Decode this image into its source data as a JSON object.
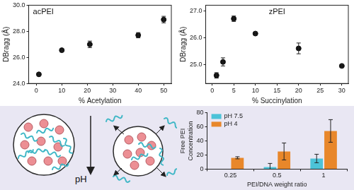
{
  "chart_data": [
    {
      "type": "scatter",
      "title": "acPEI",
      "x_label": "% Acetylation",
      "y_label": "DBragg (Å)",
      "x": [
        1,
        10,
        21,
        40,
        50
      ],
      "values": [
        24.7,
        26.55,
        27.0,
        27.7,
        28.9
      ],
      "errors": [
        0.08,
        0.08,
        0.25,
        0.2,
        0.25
      ],
      "color": "#111111",
      "marker": "circle",
      "xlim": [
        -3,
        53
      ],
      "xticks": [
        0,
        10,
        20,
        30,
        40,
        50
      ],
      "ylim": [
        24,
        30
      ],
      "yticks": [
        {
          "value": 24,
          "label": "24.0"
        },
        {
          "value": 26,
          "label": "26.0"
        },
        {
          "value": 28,
          "label": "28.0"
        },
        {
          "value": 30,
          "label": "30.0"
        }
      ],
      "grid": false
    },
    {
      "type": "scatter",
      "title": "zPEI",
      "x_label": "% Succinylation",
      "y_label": "DBragg (Å)",
      "x": [
        1,
        2.5,
        5,
        10,
        20,
        30
      ],
      "values": [
        24.6,
        25.1,
        26.7,
        26.15,
        25.6,
        24.95
      ],
      "errors": [
        0.1,
        0.15,
        0.1,
        0.05,
        0.2,
        0.05
      ],
      "color": "#111111",
      "marker": "circle",
      "xlim": [
        -1.5,
        31.5
      ],
      "xticks": [
        0,
        5,
        10,
        15,
        20,
        25,
        30
      ],
      "ylim": [
        24.3,
        27.2
      ],
      "yticks": [
        {
          "value": 25,
          "label": "25.0"
        },
        {
          "value": 26,
          "label": "26.0"
        },
        {
          "value": 27,
          "label": "27.0"
        }
      ],
      "grid": false
    },
    {
      "type": "bar",
      "categories": [
        "0.25",
        "0.5",
        "1"
      ],
      "x_label": "PEI/DNA weight ratio",
      "y_label": "Free PEI Concentration",
      "series": [
        {
          "name": "pH 7.5",
          "color": "#4cc3d8",
          "values": [
            0,
            3,
            15
          ],
          "errors": [
            0,
            5,
            6
          ]
        },
        {
          "name": "pH 4",
          "color": "#e8872a",
          "values": [
            16,
            25,
            54
          ],
          "errors": [
            1.5,
            12,
            16
          ]
        }
      ],
      "ylim": [
        0,
        80
      ],
      "yticks": [
        0,
        20,
        40,
        60,
        80
      ],
      "legend": "upper left",
      "grid": false
    }
  ],
  "diagram": {
    "label": "pH"
  }
}
